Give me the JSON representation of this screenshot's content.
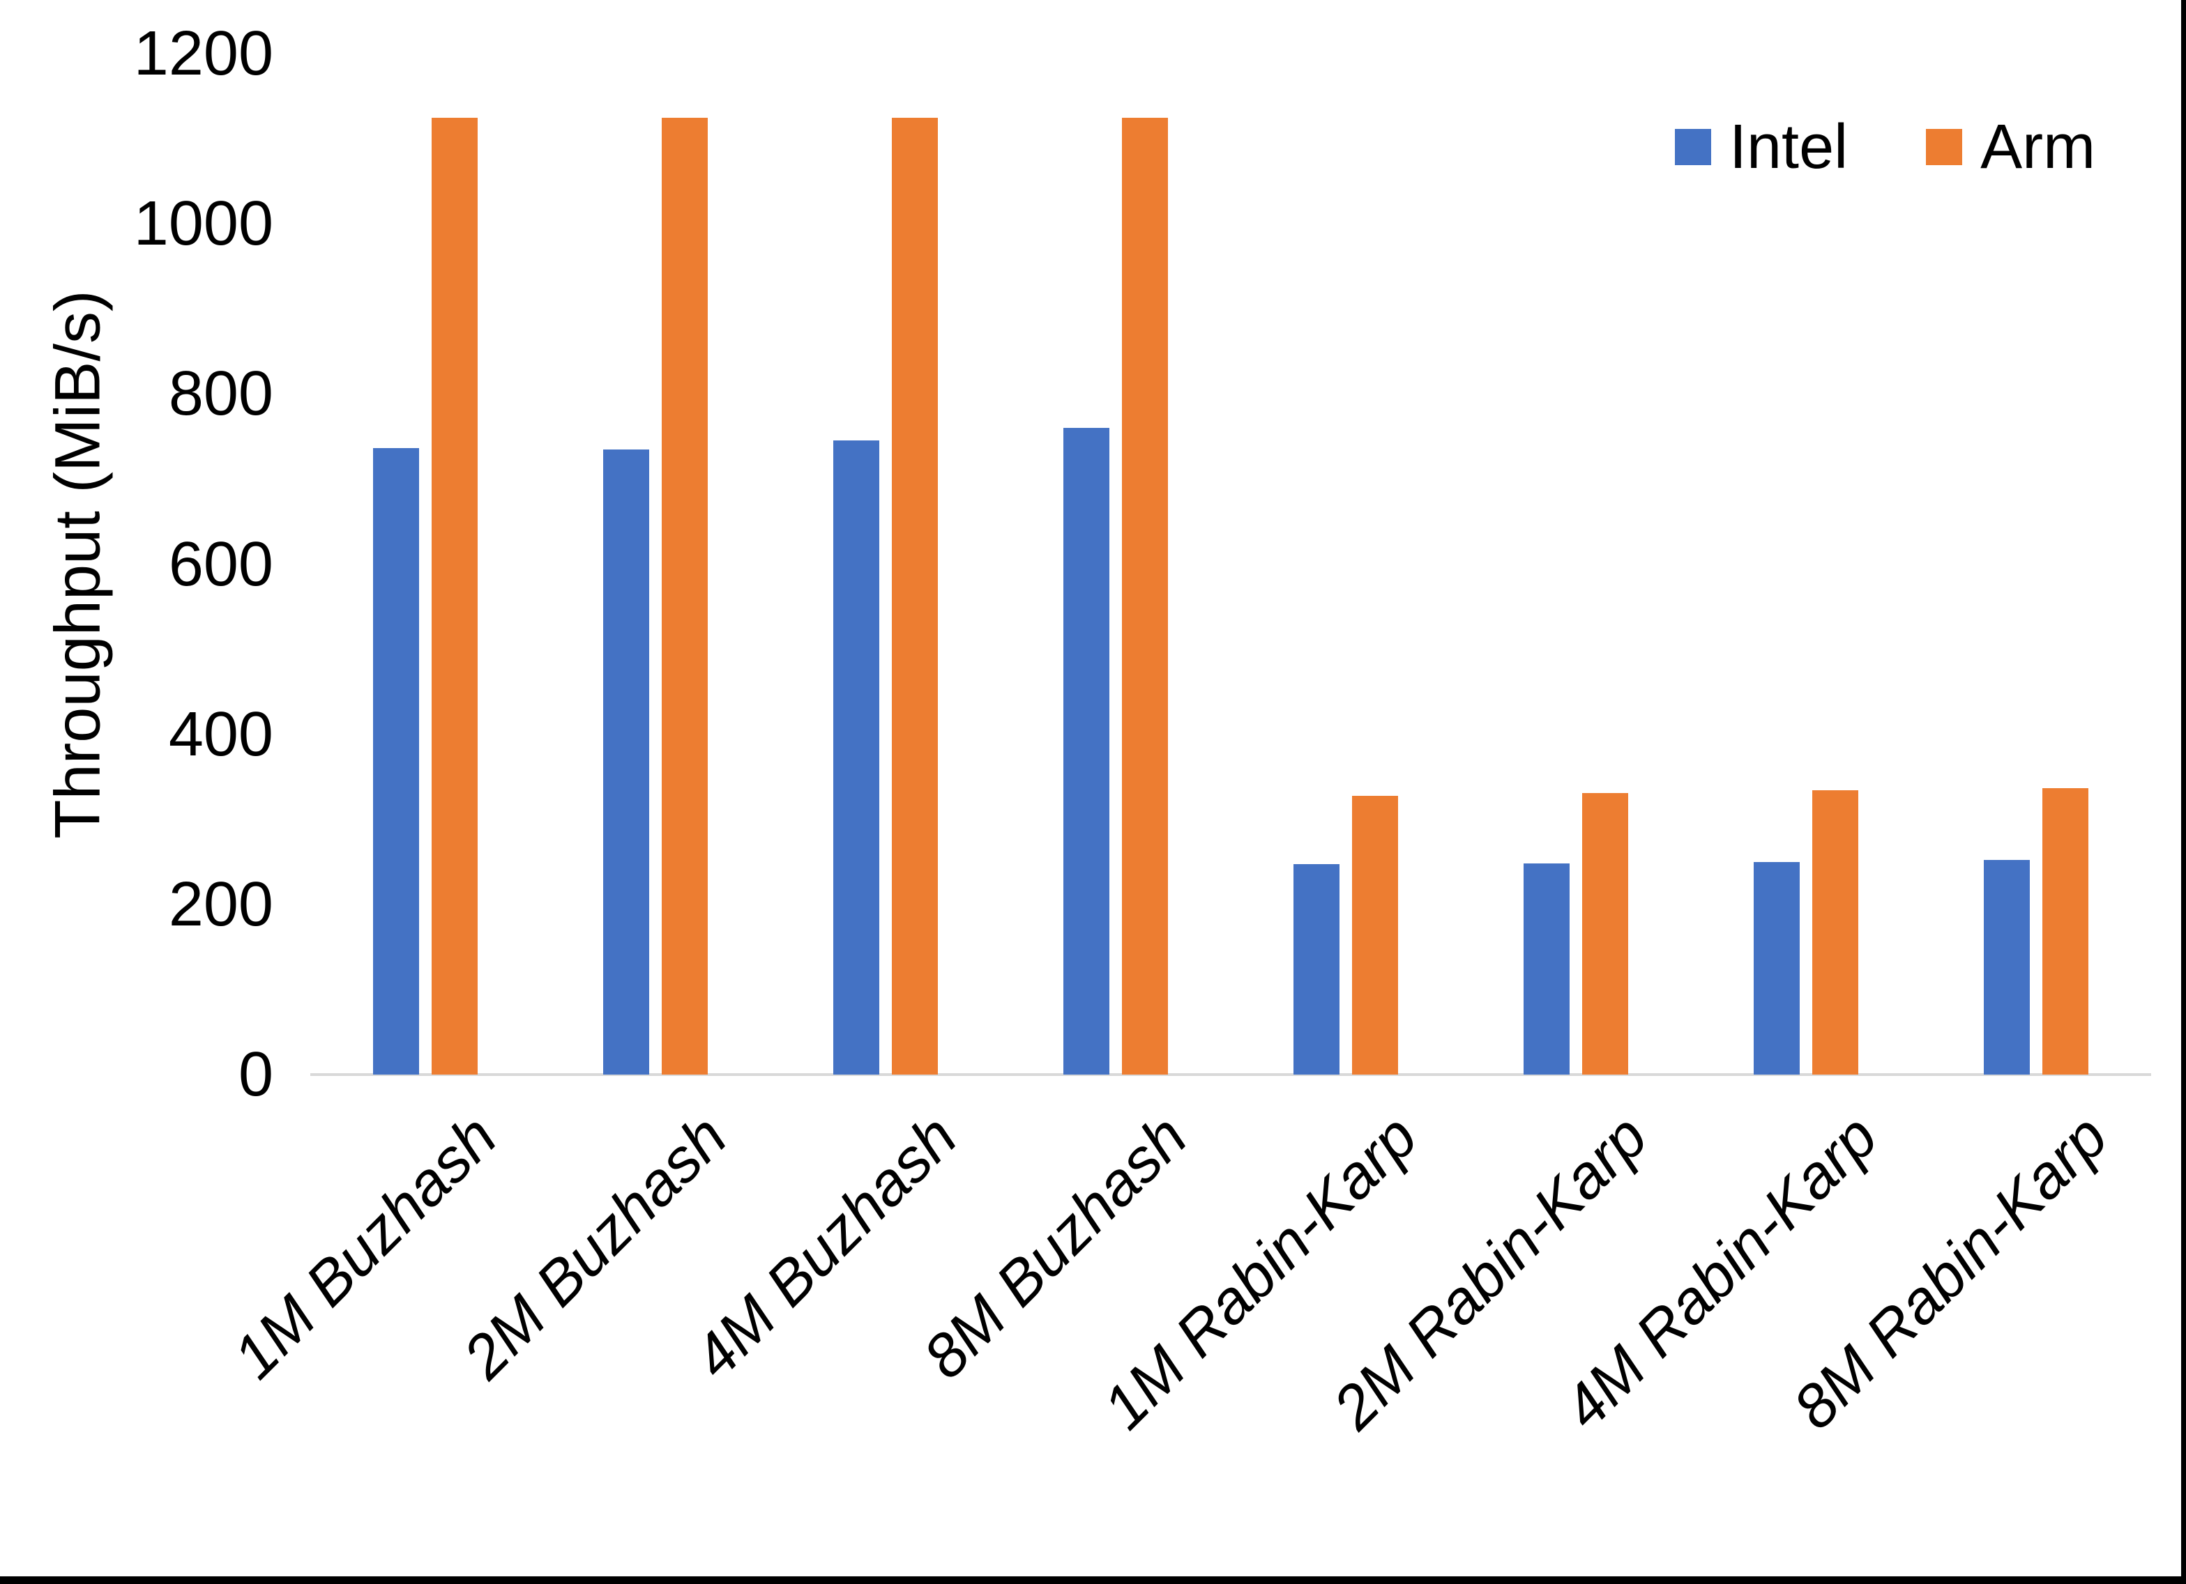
{
  "chart_data": {
    "type": "bar",
    "title": "",
    "xlabel": "",
    "ylabel": "Throughput (MiB/s)",
    "ylim": [
      0,
      1200
    ],
    "yticks": [
      0,
      200,
      400,
      600,
      800,
      1000,
      1200
    ],
    "grid": false,
    "legend_position": "top-right",
    "background": "#FFFFFF",
    "axis_line_color": "#D9D9D9",
    "tick_label_color": "#000000",
    "categories": [
      "1M Buzhash",
      "2M Buzhash",
      "4M Buzhash",
      "8M Buzhash",
      "1M Rabin-Karp",
      "2M Rabin-Karp",
      "4M Rabin-Karp",
      "8M Rabin-Karp"
    ],
    "series": [
      {
        "name": "Intel",
        "color": "#4472C4",
        "values": [
          736,
          735,
          745,
          760,
          247,
          248,
          250,
          252
        ]
      },
      {
        "name": "Arm",
        "color": "#ED7D31",
        "values": [
          1125,
          1125,
          1125,
          1125,
          328,
          331,
          334,
          337
        ]
      }
    ]
  }
}
